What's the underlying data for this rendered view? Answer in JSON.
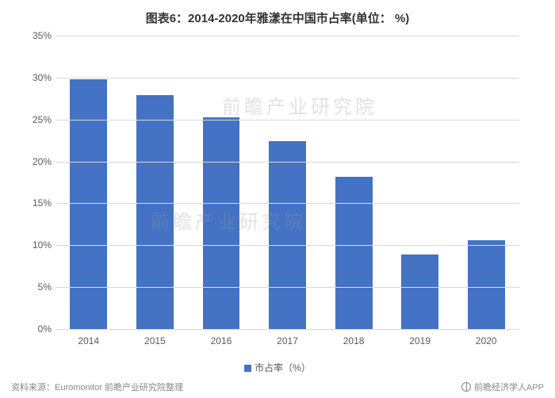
{
  "title": "图表6：2014-2020年雅漾在中国市占率(单位： %)",
  "chart": {
    "type": "bar",
    "categories": [
      "2014",
      "2015",
      "2016",
      "2017",
      "2018",
      "2019",
      "2020"
    ],
    "values": [
      29.8,
      27.9,
      25.3,
      22.4,
      18.2,
      8.9,
      10.6
    ],
    "bar_color": "#4472c4",
    "ylim": [
      0,
      35
    ],
    "ytick_step": 5,
    "y_tick_suffix": "%",
    "grid_color": "#d9d9d9",
    "background_color": "#ffffff",
    "axis_label_color": "#595959",
    "axis_fontsize": 12,
    "title_fontsize": 15,
    "title_color": "#333333",
    "bar_width_ratio": 0.56
  },
  "legend": {
    "label": "市占率（%）",
    "swatch_color": "#4472c4"
  },
  "watermark": {
    "text": "前瞻产业研究院",
    "color": "#999999",
    "opacity": 0.28,
    "fontsize": 24
  },
  "footer": {
    "source": "资料来源：Euromonitor 前瞻产业研究院整理",
    "attribution": "前瞻经济学人APP"
  }
}
